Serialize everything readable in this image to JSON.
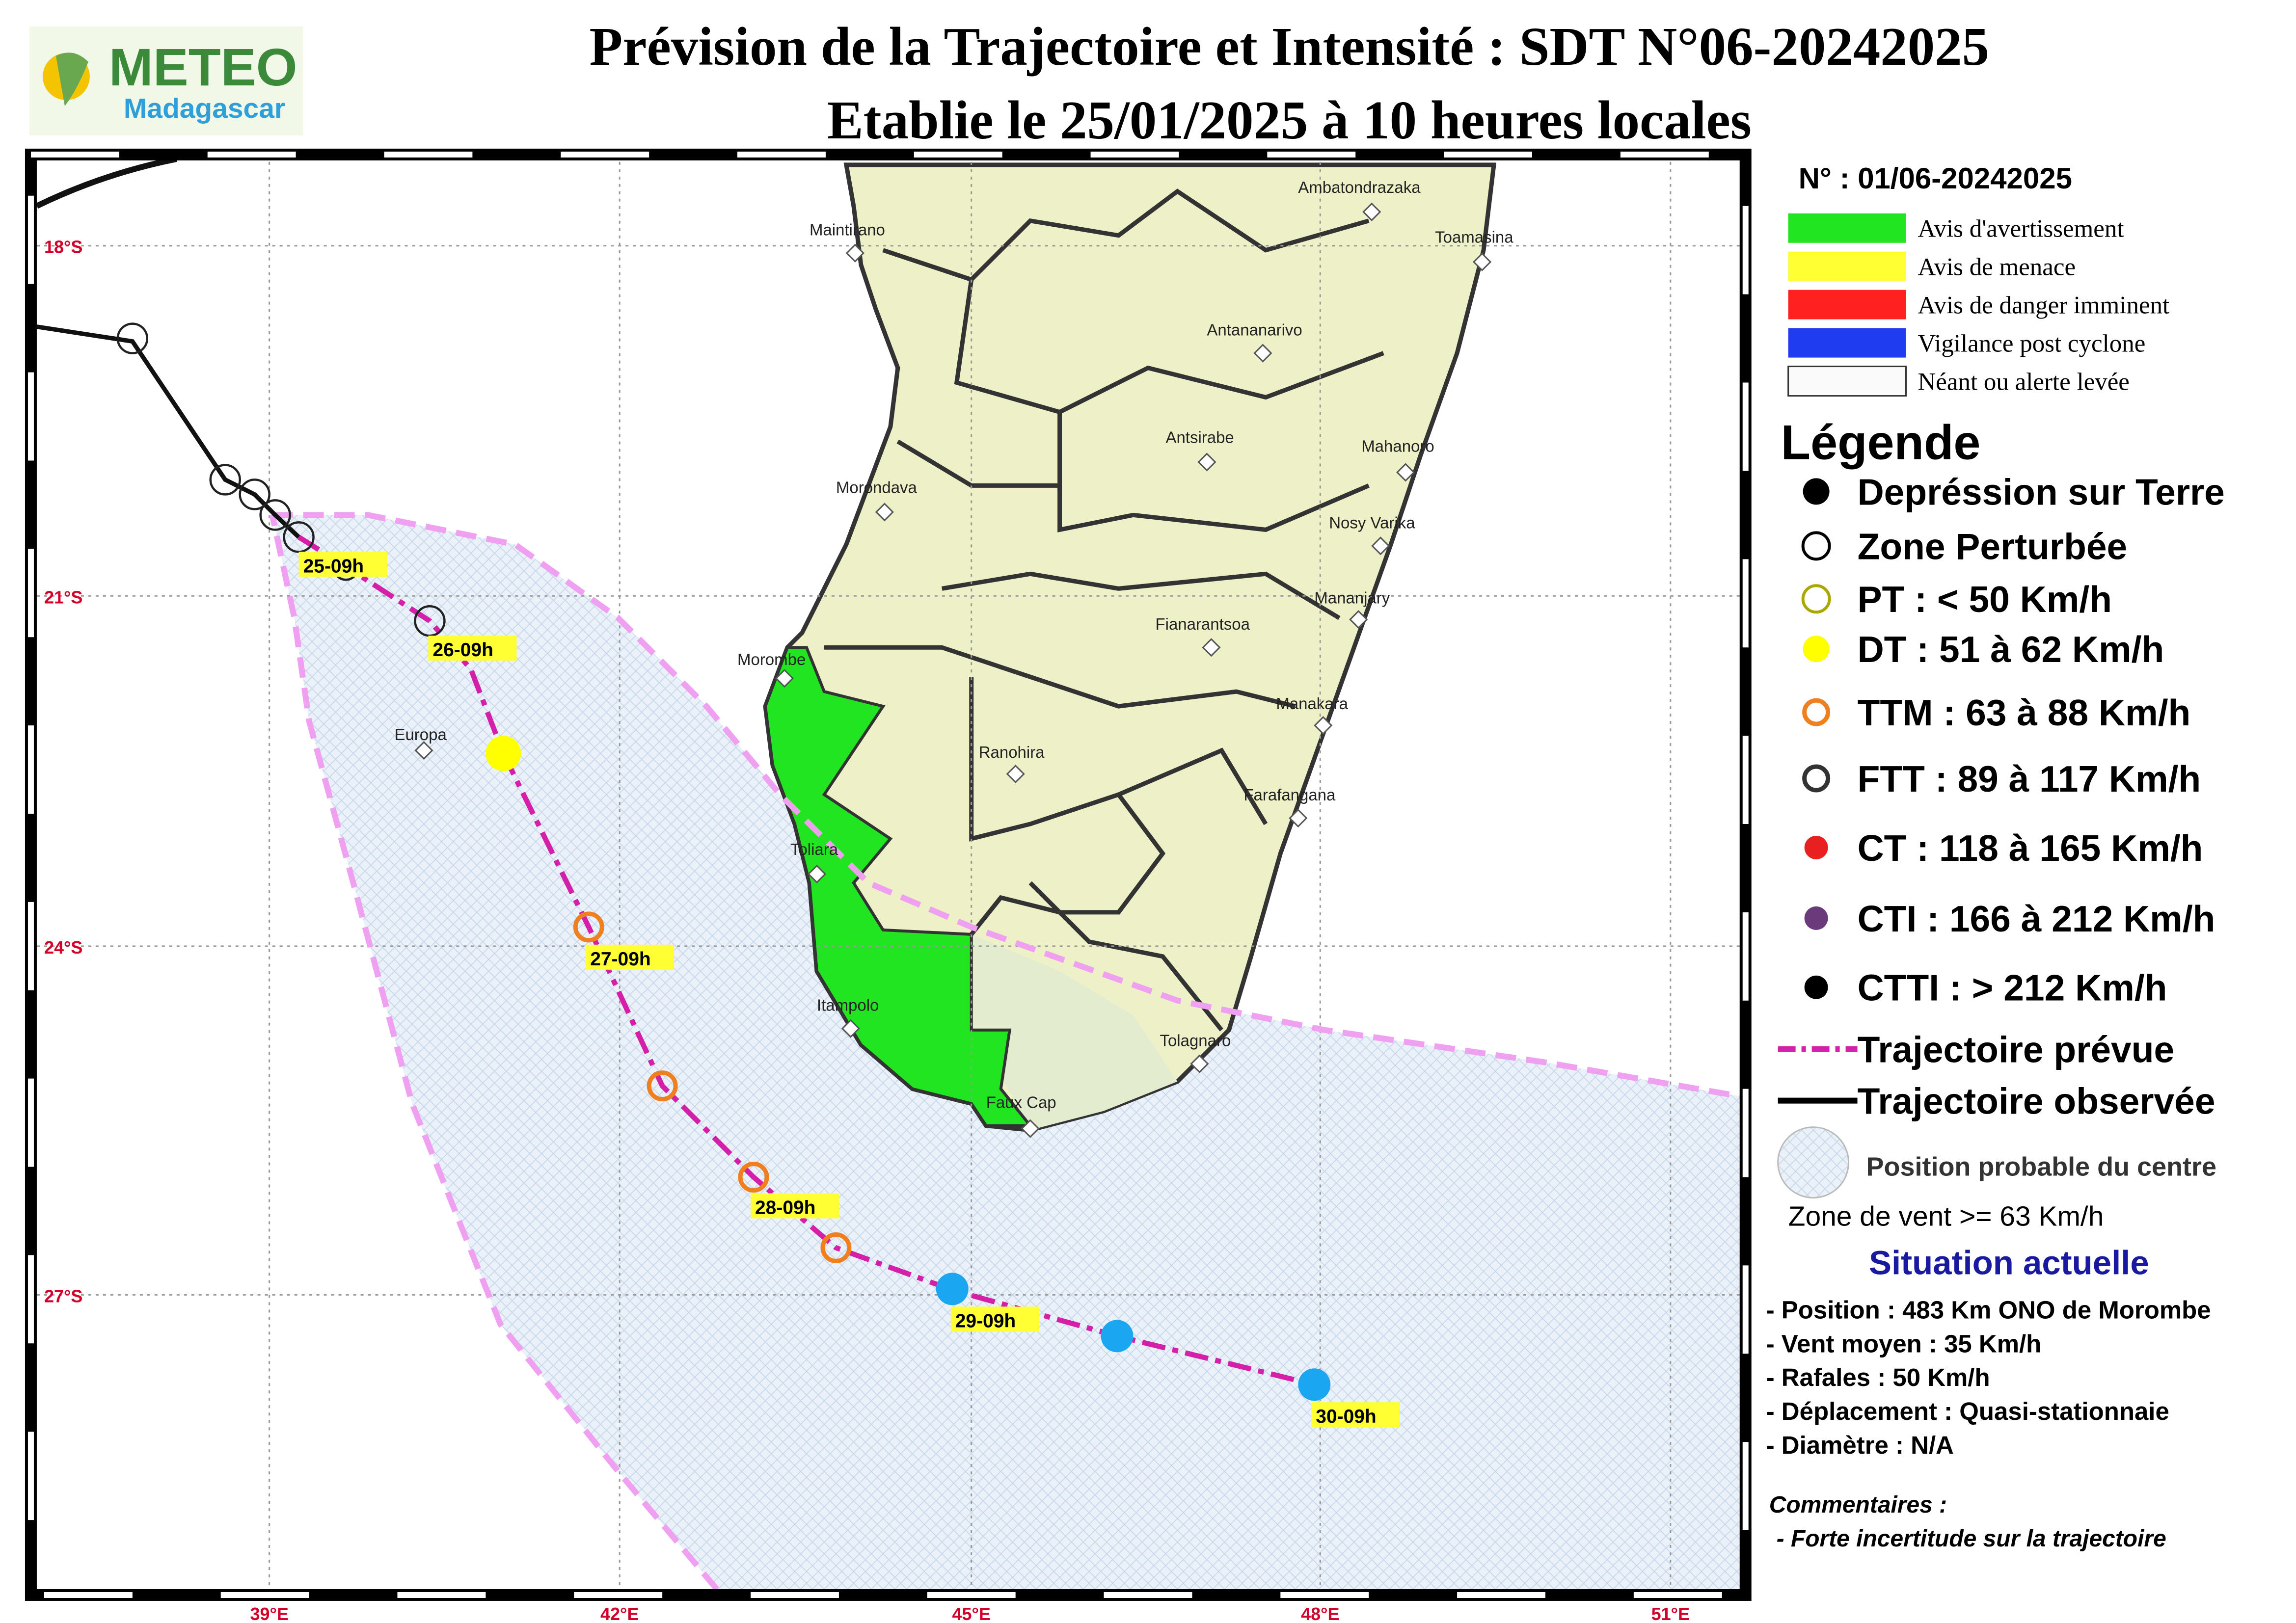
{
  "header": {
    "logo_main": "METEO",
    "logo_sub": "Madagascar",
    "title": "Prévision de la Trajectoire et Intensité : SDT N°06-20242025",
    "subtitle": "Etablie le 25/01/2025 à 10 heures locales"
  },
  "map": {
    "lat_labels": [
      "18°S",
      "21°S",
      "24°S",
      "27°S"
    ],
    "lon_labels": [
      "39°E",
      "42°E",
      "45°E",
      "48°E",
      "51°E"
    ],
    "places": [
      "Maintirano",
      "Ambatondrazaka",
      "Toamasina",
      "Antananarivo",
      "Antsirabe",
      "Mahanoro",
      "Morondava",
      "Nosy Varika",
      "Mananjary",
      "Morombe",
      "Fianarantsoa",
      "Manakara",
      "Ranohira",
      "Farafangana",
      "Europa",
      "Toliara",
      "Itampolo",
      "Tolagnaro",
      "Faux Cap"
    ],
    "track_labels": [
      "25-09h",
      "26-09h",
      "27-09h",
      "28-09h",
      "29-09h",
      "30-09h"
    ]
  },
  "sidebar": {
    "number": "N° : 01/06-20242025",
    "alerts": [
      "Avis d'avertissement",
      "Avis de menace",
      "Avis de danger imminent",
      "Vigilance post cyclone",
      "Néant ou alerte levée"
    ],
    "legend_title": "Légende",
    "legend": [
      "Depréssion sur Terre",
      "Zone Perturbée",
      "PT : < 50 Km/h",
      "DT : 51 à 62 Km/h",
      "TTM : 63 à 88 Km/h",
      "FTT : 89 à 117 Km/h",
      "CT : 118 à 165 Km/h",
      "CTI : 166 à 212 Km/h",
      "CTTI : > 212 Km/h",
      "Trajectoire prévue",
      "Trajectoire observée",
      "Position probable du centre"
    ],
    "wind_zone": "Zone de vent >= 63 Km/h",
    "situation_title": "Situation actuelle",
    "situation": [
      "- Position : 483 Km ONO de Morombe",
      "- Vent moyen : 35 Km/h",
      "- Rafales : 50 Km/h",
      "- Déplacement : Quasi-stationnaie",
      "- Diamètre : N/A"
    ],
    "comments_title": "Commentaires :",
    "comments": [
      "- Forte incertitude sur la trajectoire"
    ]
  }
}
